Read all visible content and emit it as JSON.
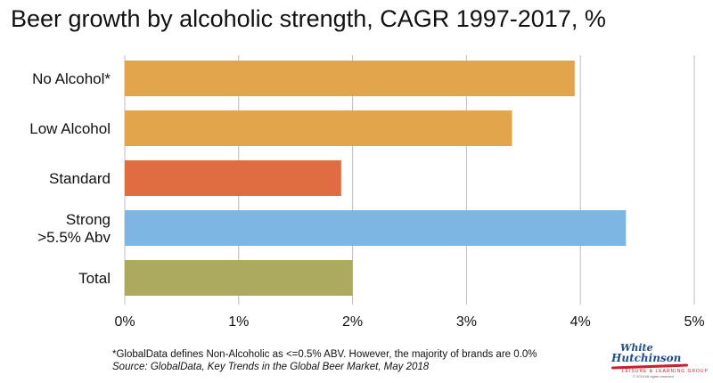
{
  "chart_data": {
    "type": "bar",
    "orientation": "horizontal",
    "title": "Beer growth by alcoholic strength, CAGR 1997-2017, %",
    "categories": [
      [
        "No Alcohol*"
      ],
      [
        "Low Alcohol"
      ],
      [
        "Standard"
      ],
      [
        "Strong",
        ">5.5% Abv"
      ],
      [
        "Total"
      ]
    ],
    "values": [
      3.95,
      3.4,
      1.9,
      4.4,
      2.0
    ],
    "bar_colors": [
      "#E2A54B",
      "#E2A54B",
      "#E06C42",
      "#7EB6E3",
      "#ABAA5E"
    ],
    "xlim": [
      0,
      5
    ],
    "xticks": [
      0,
      1,
      2,
      3,
      4,
      5
    ],
    "xtick_labels": [
      "0%",
      "1%",
      "2%",
      "3%",
      "4%",
      "5%"
    ],
    "grid": "vertical",
    "grid_color": "#bdbdbd"
  },
  "notes": {
    "footnote": "*GlobalData defines Non-Alcoholic as <=0.5% ABV. However, the majority of brands are 0.0%",
    "source": "Source: GlobalData, Key Trends in the Global Beer Market, May 2018"
  },
  "logo": {
    "line1": "White",
    "line2": "Hutchinson",
    "line3": "LEISURE & LEARNING GROUP",
    "line4": "© 2019 All rights reserved"
  }
}
